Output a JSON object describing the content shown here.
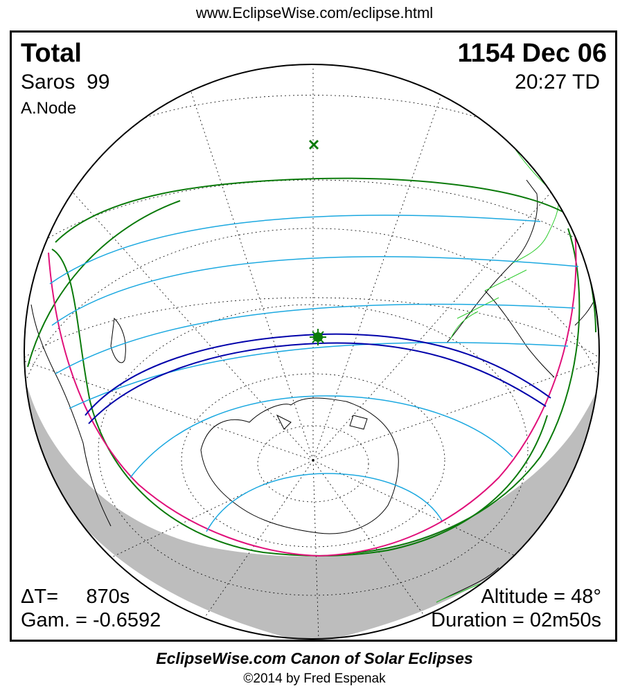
{
  "header": {
    "url": "www.EclipseWise.com/eclipse.html"
  },
  "eclipse": {
    "type": "Total",
    "date": "1154 Dec 06",
    "saros_label": "Saros",
    "saros_number": "99",
    "time": "20:27 TD",
    "node": "A.Node",
    "delta_t_label": "ΔT=",
    "delta_t_value": "870s",
    "gamma": "Gam. = -0.6592",
    "altitude": "Altitude = 48°",
    "duration": "Duration = 02m50s"
  },
  "footer": {
    "title": "EclipseWise.com Canon of Solar Eclipses",
    "copyright": "©2014 by Fred Espenak"
  },
  "colors": {
    "central_path": "#0000aa",
    "penumbral_limits": "#1aa8e0",
    "outer_limits": "#0a7a0a",
    "rise_set_curve": "#e0107a",
    "night_shade": "#bdbdbd",
    "coastline": "#000000",
    "borders": "#2ecc2e"
  }
}
